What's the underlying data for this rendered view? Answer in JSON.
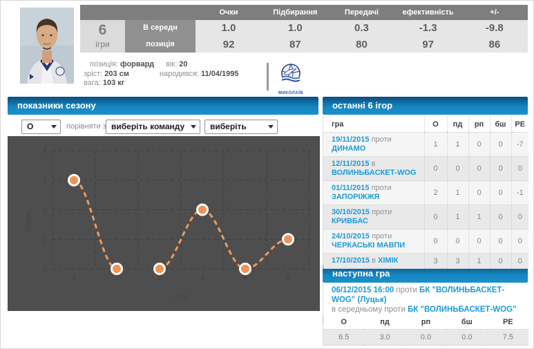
{
  "player": {
    "games_count": "6",
    "games_label": "ігри",
    "row1_label": "В середн",
    "row2_label": "позиція",
    "stat_columns": [
      "Очки",
      "Підбирання",
      "Передачі",
      "ефективність",
      "+/-"
    ],
    "avg_values": [
      "1.0",
      "1.0",
      "0.3",
      "-1.3",
      "-9.8"
    ],
    "rank_values": [
      "92",
      "87",
      "80",
      "97",
      "86"
    ],
    "info": [
      {
        "label": "позиція:",
        "value": "форвард"
      },
      {
        "label": "зріст:",
        "value": "203 см"
      },
      {
        "label": "вага:",
        "value": "103 кг"
      },
      {
        "label": "вік:",
        "value": "20"
      },
      {
        "label": "народився:",
        "value": "11/04/1995"
      }
    ],
    "club_logo_text": "МИКОЛАЇВ"
  },
  "season": {
    "title": "показники сезону",
    "stat_select_value": "О",
    "compare_label": "порівняти з:",
    "team_select_value": "виберіть команду",
    "player_select_value": "виберіть гравця"
  },
  "chart_data": {
    "type": "line",
    "x": [
      1,
      2,
      3,
      4,
      5,
      6
    ],
    "series": [
      {
        "name": "О",
        "values": [
          3,
          0,
          0,
          2,
          0,
          1
        ]
      }
    ],
    "xlabel": "ігри",
    "ylabel": "Очки",
    "ylim": [
      0,
      4
    ],
    "yticks": [
      0,
      1,
      2,
      3,
      4
    ],
    "grid": true,
    "legend": "none",
    "line_style": "dashed",
    "line_color": "#f0995a",
    "marker_color": "#ef9453",
    "marker_ring": "#ffffff",
    "background_color": "#4e4e4e",
    "grid_color": "#3e3e3e",
    "tick_color": "#424242"
  },
  "last_games": {
    "title": "останні 6 ігор",
    "columns": [
      "гра",
      "О",
      "пд",
      "рп",
      "бш",
      "РЕ"
    ],
    "rows": [
      {
        "date": "19/11/2015",
        "prep": "проти",
        "team": "ДИНАМО",
        "values": [
          "1",
          "1",
          "0",
          "0",
          "-7"
        ]
      },
      {
        "date": "12/11/2015",
        "prep": "в",
        "team": "ВОЛИНЬБАСКЕТ-WOG",
        "values": [
          "0",
          "0",
          "0",
          "0",
          "0"
        ]
      },
      {
        "date": "01/11/2015",
        "prep": "проти",
        "team": "ЗАПОРІЖЖЯ",
        "values": [
          "2",
          "1",
          "0",
          "0",
          "-1"
        ]
      },
      {
        "date": "30/10/2015",
        "prep": "проти",
        "team": "КРИВБАС",
        "values": [
          "0",
          "1",
          "1",
          "0",
          "0"
        ]
      },
      {
        "date": "24/10/2015",
        "prep": "проти",
        "team": "ЧЕРКАСЬКІ МАВПИ",
        "values": [
          "0",
          "0",
          "0",
          "0",
          "0"
        ]
      },
      {
        "date": "17/10/2015",
        "prep": "в",
        "team": "ХІМІК",
        "values": [
          "3",
          "3",
          "1",
          "0",
          "0"
        ]
      }
    ]
  },
  "next_game": {
    "title": "наступна гра",
    "datetime": "06/12/2015 16:00",
    "prep": "проти",
    "opponent": "БК \"ВОЛИНЬБАСКЕТ-WOG\" (Луцьк)",
    "avg_label": "в середньому проти",
    "avg_opponent": "БК \"ВОЛИНЬБАСКЕТ-WOG\" (Луцьк)",
    "columns": [
      "О",
      "пд",
      "рп",
      "бш",
      "РЕ"
    ],
    "values": [
      "6.5",
      "3.0",
      "0.0",
      "0.0",
      "7.5"
    ]
  },
  "colors": {
    "accent_blue": "#1a9bd7",
    "header_gradient_top": "#0b4d7e",
    "header_gradient_bottom": "#1c90cb",
    "chart_line": "#f0995a",
    "chart_bg": "#4e4e4e"
  }
}
